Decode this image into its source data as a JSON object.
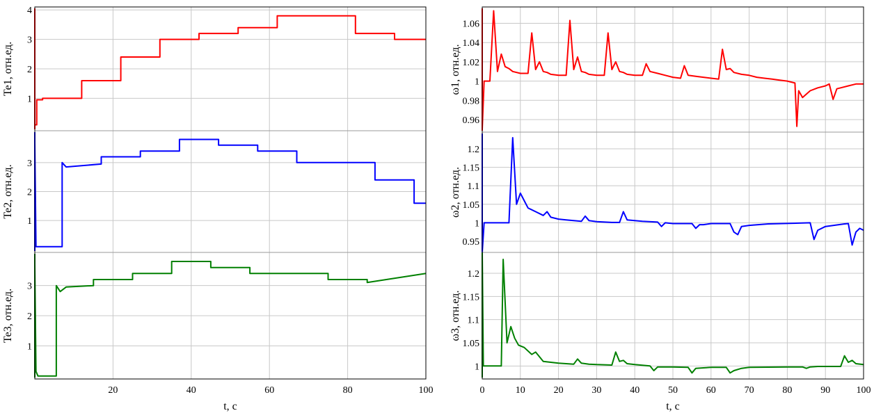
{
  "charts": [
    {
      "xlabel": "t, c",
      "xticks": [
        20,
        40,
        60,
        80,
        100
      ],
      "xlim": [
        0,
        100
      ],
      "panels": [
        {
          "ylabel": "Te1, отн.ед.",
          "yticks": [
            1,
            2,
            3,
            4
          ],
          "ylim": [
            -0.1,
            4.1
          ],
          "color": "#ff0000"
        },
        {
          "ylabel": "Te2, отн.ед.",
          "yticks": [
            1,
            2,
            3
          ],
          "ylim": [
            -0.1,
            4.1
          ],
          "color": "#0000ff"
        },
        {
          "ylabel": "Te3, отн.ед.",
          "yticks": [
            1,
            2,
            3
          ],
          "ylim": [
            -0.1,
            4.1
          ],
          "color": "#008000"
        }
      ]
    },
    {
      "xlabel": "t, c",
      "xticks": [
        0,
        10,
        20,
        30,
        40,
        50,
        60,
        70,
        80,
        90,
        100
      ],
      "xlim": [
        0,
        100
      ],
      "panels": [
        {
          "ylabel": "ω1, отн.ед.",
          "yticks": [
            0.96,
            0.98,
            1,
            1.02,
            1.04,
            1.06
          ],
          "ylim": [
            0.947,
            1.077
          ],
          "color": "#ff0000"
        },
        {
          "ylabel": "ω2, отн.ед.",
          "yticks": [
            0.95,
            1,
            1.05,
            1.1,
            1.15,
            1.2
          ],
          "ylim": [
            0.92,
            1.245
          ],
          "color": "#0000ff"
        },
        {
          "ylabel": "ω3, отн.ед.",
          "yticks": [
            1,
            1.05,
            1.1,
            1.15,
            1.2
          ],
          "ylim": [
            0.972,
            1.245
          ],
          "color": "#008000"
        }
      ]
    }
  ],
  "chart_data": [
    {
      "type": "line",
      "series": [
        {
          "panel": 0,
          "x": [
            0,
            0.5,
            0.5,
            2,
            2,
            12,
            12,
            22,
            22,
            32,
            32,
            42,
            42,
            52,
            52,
            62,
            62,
            82,
            82,
            92,
            92,
            100
          ],
          "y": [
            0.1,
            0.1,
            0.95,
            0.95,
            1.0,
            1.0,
            1.6,
            1.6,
            2.4,
            2.4,
            3.0,
            3.0,
            3.2,
            3.2,
            3.4,
            3.4,
            3.8,
            3.8,
            3.2,
            3.2,
            3.0,
            3.0
          ]
        },
        {
          "panel": 1,
          "x": [
            0,
            0.3,
            7,
            7,
            8,
            17,
            17,
            27,
            27,
            37,
            37,
            47,
            47,
            57,
            57,
            67,
            67,
            87,
            87,
            97,
            97,
            100
          ],
          "y": [
            3.7,
            0.1,
            0.1,
            3.0,
            2.85,
            2.95,
            3.2,
            3.2,
            3.4,
            3.4,
            3.8,
            3.8,
            3.6,
            3.6,
            3.4,
            3.4,
            3.0,
            3.0,
            2.4,
            2.4,
            1.6,
            1.6
          ]
        },
        {
          "panel": 2,
          "x": [
            0,
            0.3,
            0.8,
            5.5,
            5.5,
            6.5,
            8,
            15,
            15,
            25,
            25,
            35,
            35,
            45,
            45,
            55,
            55,
            75,
            75,
            85,
            85,
            100
          ],
          "y": [
            3.7,
            0.15,
            0.0,
            0.0,
            3.0,
            2.8,
            2.95,
            3.0,
            3.2,
            3.2,
            3.4,
            3.4,
            3.8,
            3.8,
            3.6,
            3.6,
            3.4,
            3.4,
            3.2,
            3.2,
            3.1,
            3.4
          ]
        }
      ]
    },
    {
      "type": "line",
      "series": [
        {
          "panel": 0,
          "x": [
            0,
            0.5,
            2,
            3,
            4,
            5,
            6,
            7,
            8,
            10,
            12,
            13,
            14,
            15,
            16,
            17,
            18,
            20,
            22,
            23,
            24,
            25,
            26,
            27,
            28,
            30,
            32,
            33,
            34,
            35,
            36,
            37,
            38,
            40,
            42,
            43,
            44,
            46,
            48,
            50,
            52,
            53,
            54,
            56,
            58,
            60,
            62,
            63,
            64,
            65,
            66,
            68,
            70,
            72,
            74,
            76,
            78,
            80,
            82,
            82.5,
            83,
            84,
            86,
            88,
            90,
            91,
            92,
            93,
            94,
            96,
            98,
            100
          ],
          "y": [
            0.95,
            1.0,
            1.0,
            1.073,
            1.01,
            1.028,
            1.015,
            1.013,
            1.01,
            1.008,
            1.008,
            1.05,
            1.012,
            1.02,
            1.01,
            1.009,
            1.007,
            1.006,
            1.006,
            1.063,
            1.012,
            1.025,
            1.01,
            1.009,
            1.007,
            1.006,
            1.006,
            1.05,
            1.012,
            1.02,
            1.01,
            1.009,
            1.007,
            1.006,
            1.006,
            1.018,
            1.01,
            1.008,
            1.006,
            1.004,
            1.003,
            1.016,
            1.006,
            1.005,
            1.004,
            1.003,
            1.002,
            1.033,
            1.012,
            1.013,
            1.009,
            1.007,
            1.006,
            1.004,
            1.003,
            1.002,
            1.001,
            1.0,
            0.998,
            0.953,
            0.99,
            0.983,
            0.99,
            0.993,
            0.995,
            0.997,
            0.981,
            0.992,
            0.993,
            0.995,
            0.997,
            0.997
          ]
        },
        {
          "panel": 1,
          "x": [
            0,
            0.5,
            1,
            6,
            7,
            8,
            9,
            10,
            11,
            12,
            14,
            16,
            17,
            18,
            20,
            22,
            24,
            26,
            27,
            28,
            30,
            34,
            36,
            37,
            38,
            40,
            42,
            46,
            47,
            48,
            50,
            52,
            55,
            56,
            57,
            58,
            60,
            65,
            66,
            67,
            68,
            70,
            75,
            86,
            87,
            88,
            90,
            95,
            96,
            97,
            98,
            99,
            100
          ],
          "y": [
            0.92,
            1.0,
            1.0,
            1.0,
            1.0,
            1.23,
            1.05,
            1.08,
            1.06,
            1.04,
            1.03,
            1.02,
            1.03,
            1.015,
            1.01,
            1.008,
            1.006,
            1.004,
            1.018,
            1.006,
            1.003,
            1.001,
            1.001,
            1.03,
            1.008,
            1.006,
            1.004,
            1.002,
            0.99,
            1.0,
            0.998,
            0.998,
            0.998,
            0.985,
            0.995,
            0.995,
            0.998,
            0.998,
            0.975,
            0.968,
            0.99,
            0.993,
            0.997,
            1.0,
            0.955,
            0.98,
            0.99,
            0.997,
            0.998,
            0.94,
            0.975,
            0.985,
            0.98
          ]
        },
        {
          "panel": 2,
          "x": [
            0,
            0.3,
            0.6,
            4,
            5,
            5.5,
            6.5,
            7.5,
            8.5,
            9.5,
            11,
            13,
            14,
            15,
            16,
            18,
            20,
            22,
            24,
            25,
            26,
            28,
            30,
            34,
            35,
            36,
            37,
            38,
            40,
            44,
            45,
            46,
            48,
            50,
            54,
            55,
            56,
            58,
            60,
            64,
            65,
            66,
            68,
            70,
            80,
            84,
            85,
            86,
            88,
            94,
            95,
            96,
            97,
            98,
            100
          ],
          "y": [
            1.245,
            1.0,
            1.0,
            1.0,
            1.0,
            1.23,
            1.05,
            1.085,
            1.06,
            1.045,
            1.04,
            1.025,
            1.03,
            1.02,
            1.01,
            1.008,
            1.006,
            1.005,
            1.004,
            1.015,
            1.006,
            1.004,
            1.003,
            1.002,
            1.03,
            1.01,
            1.012,
            1.005,
            1.003,
            1.0,
            0.99,
            0.998,
            0.998,
            0.998,
            0.997,
            0.985,
            0.995,
            0.996,
            0.997,
            0.997,
            0.985,
            0.99,
            0.995,
            0.997,
            0.998,
            0.998,
            0.995,
            0.998,
            0.999,
            0.999,
            1.022,
            1.008,
            1.012,
            1.005,
            1.003
          ]
        }
      ]
    }
  ]
}
